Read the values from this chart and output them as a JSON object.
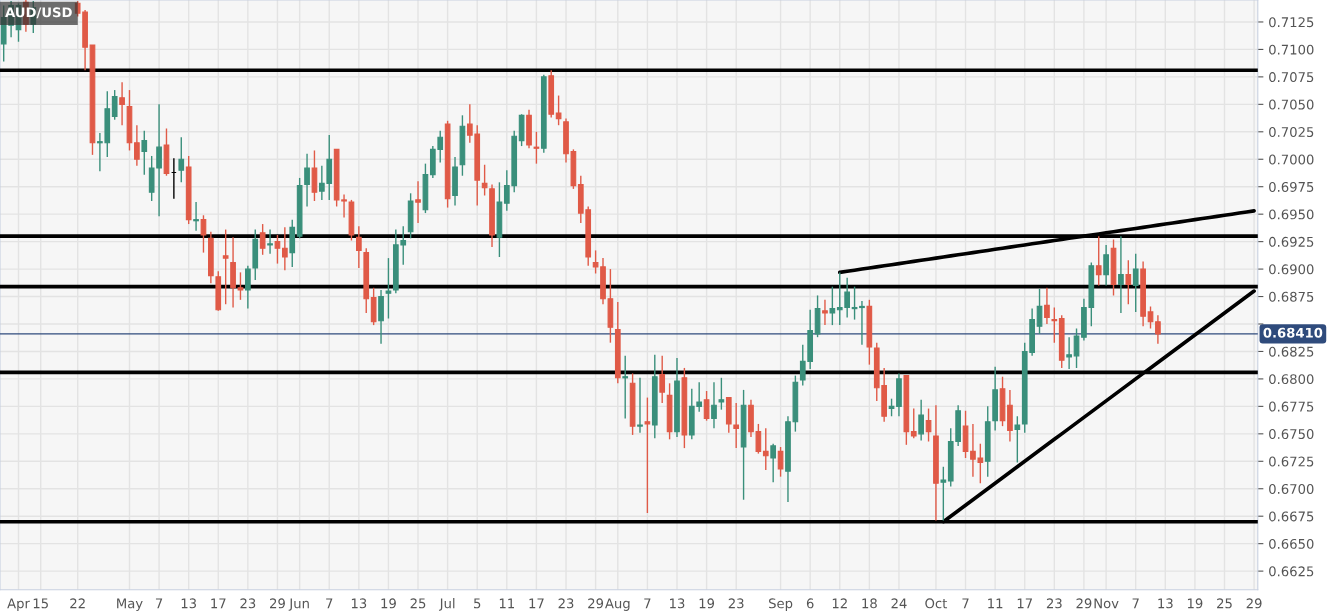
{
  "chart_data": {
    "type": "candlestick",
    "title": "AUD/USD",
    "categories": [
      null,
      null,
      "Apr",
      null,
      null,
      "15",
      null,
      null,
      null,
      null,
      "22",
      null,
      null,
      null,
      null,
      null,
      null,
      "May",
      null,
      null,
      null,
      "7",
      null,
      null,
      null,
      "13",
      null,
      null,
      null,
      "17",
      null,
      null,
      null,
      "23",
      null,
      null,
      null,
      "29",
      null,
      null,
      "Jun",
      null,
      null,
      null,
      "7",
      null,
      null,
      null,
      "13",
      null,
      null,
      null,
      "19",
      null,
      null,
      null,
      "25",
      null,
      null,
      null,
      "Jul",
      null,
      null,
      null,
      "5",
      null,
      null,
      null,
      "11",
      null,
      null,
      null,
      "17",
      null,
      null,
      null,
      "23",
      null,
      null,
      null,
      "29",
      null,
      null,
      "Aug",
      null,
      null,
      null,
      "7",
      null,
      null,
      null,
      "13",
      null,
      null,
      null,
      "19",
      null,
      null,
      null,
      "23",
      null,
      null,
      null,
      null,
      null,
      "Sep",
      null,
      null,
      null,
      "6",
      null,
      null,
      null,
      "12",
      null,
      null,
      null,
      "18",
      null,
      null,
      null,
      "24",
      null,
      null,
      null,
      null,
      "Oct",
      null,
      null,
      null,
      "7",
      null,
      null,
      null,
      "11",
      null,
      null,
      null,
      "17",
      null,
      null,
      null,
      "23",
      null,
      null,
      null,
      "29",
      null,
      null,
      "Nov",
      null,
      null,
      null,
      "7",
      null,
      null,
      null,
      "13",
      null,
      null,
      null,
      "19",
      null,
      null,
      null,
      "25",
      null,
      null,
      null,
      "29"
    ],
    "ohlc": [
      [
        0.7105,
        0.714,
        0.7089,
        0.7129
      ],
      [
        0.7122,
        0.7144,
        0.7111,
        0.714
      ],
      [
        0.7118,
        0.7142,
        0.7107,
        0.714
      ],
      [
        0.7143,
        0.7145,
        0.7116,
        0.7123
      ],
      [
        0.7123,
        0.7144,
        0.7115,
        0.7138
      ],
      null,
      null,
      null,
      null,
      null,
      [
        0.7142,
        0.7144,
        0.713,
        0.7133
      ],
      [
        0.7134,
        0.7136,
        0.7081,
        0.7102
      ],
      [
        0.7104,
        0.7104,
        0.7004,
        0.7015
      ],
      [
        0.7015,
        0.7024,
        0.6989,
        0.7016
      ],
      [
        0.7015,
        0.7062,
        0.7002,
        0.7046
      ],
      [
        0.7039,
        0.7063,
        0.7036,
        0.7057
      ],
      [
        0.7056,
        0.707,
        0.7031,
        0.705
      ],
      [
        0.7048,
        0.7063,
        0.7008,
        0.7015
      ],
      [
        0.7015,
        0.7031,
        0.6994,
        0.7
      ],
      [
        0.7007,
        0.7026,
        0.6986,
        0.7017
      ],
      [
        0.697,
        0.7003,
        0.6962,
        0.6992
      ],
      [
        0.6992,
        0.705,
        0.6948,
        0.7011
      ],
      [
        0.7013,
        0.7028,
        0.6985,
        0.6987
      ],
      [
        0.6988,
        0.7001,
        0.6964,
        0.6988
      ],
      [
        0.699,
        0.702,
        0.6979,
        0.7
      ],
      [
        0.6993,
        0.7003,
        0.6941,
        0.6945
      ],
      [
        0.6944,
        0.6961,
        0.6935,
        0.6945
      ],
      [
        0.6945,
        0.6949,
        0.6915,
        0.6931
      ],
      [
        0.6928,
        0.6934,
        0.6887,
        0.6894
      ],
      [
        0.6893,
        0.6898,
        0.6862,
        0.6863
      ],
      [
        0.6912,
        0.6936,
        0.6868,
        0.691
      ],
      [
        0.6906,
        0.6929,
        0.6865,
        0.6883
      ],
      [
        0.6883,
        0.6897,
        0.6872,
        0.6881
      ],
      [
        0.6881,
        0.6903,
        0.6864,
        0.69
      ],
      [
        0.6901,
        0.6936,
        0.689,
        0.6927
      ],
      [
        0.6933,
        0.6941,
        0.6913,
        0.6919
      ],
      [
        0.6922,
        0.6936,
        0.6914,
        0.6923
      ],
      [
        0.6925,
        0.6931,
        0.6905,
        0.6919
      ],
      [
        0.6919,
        0.6938,
        0.6899,
        0.6911
      ],
      [
        0.6915,
        0.6945,
        0.6902,
        0.6938
      ],
      [
        0.693,
        0.6983,
        0.6928,
        0.6976
      ],
      [
        0.6977,
        0.7005,
        0.6957,
        0.6992
      ],
      [
        0.6992,
        0.7008,
        0.6962,
        0.697
      ],
      [
        0.6971,
        0.6994,
        0.6963,
        0.6978
      ],
      [
        0.6978,
        0.7022,
        0.6963,
        0.7
      ],
      [
        0.7009,
        0.7009,
        0.6957,
        0.6963
      ],
      [
        0.6963,
        0.6968,
        0.6947,
        0.6962
      ],
      [
        0.6961,
        0.6963,
        0.6926,
        0.6931
      ],
      [
        0.6929,
        0.6939,
        0.6901,
        0.6917
      ],
      [
        0.6915,
        0.6919,
        0.686,
        0.6873
      ],
      [
        0.6874,
        0.6883,
        0.6849,
        0.6852
      ],
      [
        0.6853,
        0.6881,
        0.6832,
        0.6875
      ],
      [
        0.6878,
        0.691,
        0.6855,
        0.688
      ],
      [
        0.6881,
        0.6936,
        0.6878,
        0.6922
      ],
      [
        0.6922,
        0.6939,
        0.6904,
        0.6926
      ],
      [
        0.6934,
        0.6969,
        0.6928,
        0.6962
      ],
      [
        0.6963,
        0.698,
        0.6942,
        0.6961
      ],
      [
        0.6954,
        0.6996,
        0.6951,
        0.6986
      ],
      [
        0.6986,
        0.7012,
        0.6983,
        0.7009
      ],
      [
        0.7009,
        0.7026,
        0.6997,
        0.702
      ],
      [
        0.7032,
        0.7035,
        0.6956,
        0.6964
      ],
      [
        0.6967,
        0.7002,
        0.6958,
        0.6993
      ],
      [
        0.6995,
        0.704,
        0.6985,
        0.703
      ],
      [
        0.7032,
        0.705,
        0.7015,
        0.7022
      ],
      [
        0.7023,
        0.7031,
        0.6958,
        0.6981
      ],
      [
        0.6978,
        0.6995,
        0.6967,
        0.6974
      ],
      [
        0.6973,
        0.6977,
        0.692,
        0.6931
      ],
      [
        0.6929,
        0.6979,
        0.6911,
        0.6961
      ],
      [
        0.696,
        0.699,
        0.6953,
        0.6976
      ],
      [
        0.6976,
        0.7026,
        0.697,
        0.7021
      ],
      [
        0.7017,
        0.7041,
        0.7012,
        0.704
      ],
      [
        0.704,
        0.7045,
        0.701,
        0.7013
      ],
      [
        0.7011,
        0.7025,
        0.6996,
        0.701
      ],
      [
        0.701,
        0.7077,
        0.7006,
        0.7075
      ],
      [
        0.7076,
        0.7081,
        0.7038,
        0.7041
      ],
      [
        0.7042,
        0.7058,
        0.7031,
        0.7037
      ],
      [
        0.7034,
        0.7037,
        0.6997,
        0.7005
      ],
      [
        0.7007,
        0.7009,
        0.6973,
        0.6976
      ],
      [
        0.6977,
        0.6985,
        0.6942,
        0.6951
      ],
      [
        0.6954,
        0.6957,
        0.6903,
        0.6911
      ],
      [
        0.6906,
        0.6917,
        0.6896,
        0.6902
      ],
      [
        0.6902,
        0.691,
        0.6868,
        0.6873
      ],
      [
        0.6873,
        0.69,
        0.6833,
        0.6847
      ],
      [
        0.6845,
        0.687,
        0.6796,
        0.6801
      ],
      [
        0.6801,
        0.6821,
        0.6764,
        0.6802
      ],
      [
        0.6796,
        0.6805,
        0.6749,
        0.6757
      ],
      [
        0.6757,
        0.6801,
        0.6751,
        0.6758
      ],
      [
        0.6761,
        0.6783,
        0.6678,
        0.6759
      ],
      [
        0.6758,
        0.6822,
        0.6746,
        0.6802
      ],
      [
        0.6804,
        0.6821,
        0.6778,
        0.6788
      ],
      [
        0.6785,
        0.6796,
        0.6745,
        0.6752
      ],
      [
        0.6752,
        0.6819,
        0.6747,
        0.6798
      ],
      [
        0.6801,
        0.681,
        0.6737,
        0.6749
      ],
      [
        0.6749,
        0.6791,
        0.6745,
        0.6775
      ],
      [
        0.6775,
        0.6797,
        0.677,
        0.6779
      ],
      [
        0.6781,
        0.6789,
        0.6762,
        0.6764
      ],
      [
        0.6764,
        0.6797,
        0.6755,
        0.6776
      ],
      [
        0.6779,
        0.6801,
        0.6772,
        0.6781
      ],
      [
        0.6783,
        0.6783,
        0.6751,
        0.6759
      ],
      [
        0.6758,
        0.6778,
        0.6737,
        0.6755
      ],
      [
        0.6738,
        0.679,
        0.669,
        0.6776
      ],
      [
        0.6776,
        0.6781,
        0.6747,
        0.6752
      ],
      [
        0.6752,
        0.6759,
        0.6732,
        0.6734
      ],
      [
        0.6734,
        0.6755,
        0.6717,
        0.673
      ],
      [
        0.6728,
        0.6741,
        0.6706,
        0.6739
      ],
      [
        0.6734,
        0.6738,
        0.6711,
        0.6718
      ],
      [
        0.6716,
        0.6766,
        0.6688,
        0.6761
      ],
      [
        0.6761,
        0.6803,
        0.6752,
        0.6797
      ],
      [
        0.6799,
        0.6831,
        0.6794,
        0.6816
      ],
      [
        0.6816,
        0.6863,
        0.6809,
        0.6844
      ],
      [
        0.6841,
        0.6876,
        0.6838,
        0.6864
      ],
      [
        0.6862,
        0.6872,
        0.6849,
        0.686
      ],
      [
        0.686,
        0.6884,
        0.6849,
        0.6864
      ],
      [
        0.6863,
        0.6897,
        0.6849,
        0.6865
      ],
      [
        0.6865,
        0.6892,
        0.6856,
        0.6879
      ],
      [
        0.6864,
        0.6884,
        0.6854,
        0.6865
      ],
      [
        0.6865,
        0.6871,
        0.6831,
        0.6866
      ],
      [
        0.6866,
        0.6872,
        0.6813,
        0.6829
      ],
      [
        0.6828,
        0.6833,
        0.678,
        0.6792
      ],
      [
        0.6794,
        0.681,
        0.6761,
        0.6766
      ],
      [
        0.6773,
        0.6782,
        0.6766,
        0.6775
      ],
      [
        0.6775,
        0.6805,
        0.6766,
        0.68
      ],
      [
        0.6803,
        0.6803,
        0.674,
        0.6752
      ],
      [
        0.6752,
        0.6773,
        0.6746,
        0.6748
      ],
      [
        0.675,
        0.6781,
        0.6744,
        0.6767
      ],
      [
        0.6762,
        0.6773,
        0.6743,
        0.6752
      ],
      [
        0.6748,
        0.6776,
        0.6671,
        0.6705
      ],
      [
        0.6706,
        0.672,
        0.6671,
        0.6708
      ],
      [
        0.6707,
        0.6755,
        0.6702,
        0.6743
      ],
      [
        0.6743,
        0.6776,
        0.6739,
        0.6771
      ],
      [
        0.6757,
        0.6771,
        0.6728,
        0.6734
      ],
      [
        0.6734,
        0.6759,
        0.6711,
        0.6727
      ],
      [
        0.6728,
        0.6741,
        0.6705,
        0.6724
      ],
      [
        0.6725,
        0.6775,
        0.6711,
        0.6761
      ],
      [
        0.6762,
        0.6811,
        0.6753,
        0.679
      ],
      [
        0.6791,
        0.6802,
        0.6757,
        0.6762
      ],
      [
        0.6776,
        0.679,
        0.6743,
        0.6753
      ],
      [
        0.6754,
        0.6766,
        0.6724,
        0.6758
      ],
      [
        0.6759,
        0.6833,
        0.6751,
        0.6825
      ],
      [
        0.6824,
        0.6864,
        0.6821,
        0.6854
      ],
      [
        0.6848,
        0.6882,
        0.6841,
        0.6866
      ],
      [
        0.6867,
        0.6883,
        0.685,
        0.6856
      ],
      [
        0.6854,
        0.6865,
        0.6833,
        0.6853
      ],
      [
        0.6855,
        0.6858,
        0.681,
        0.6817
      ],
      [
        0.682,
        0.6838,
        0.6809,
        0.6822
      ],
      [
        0.6821,
        0.6846,
        0.681,
        0.6839
      ],
      [
        0.6838,
        0.6873,
        0.6835,
        0.6865
      ],
      [
        0.6865,
        0.6906,
        0.6848,
        0.6903
      ],
      [
        0.6903,
        0.693,
        0.6885,
        0.6895
      ],
      [
        0.6895,
        0.6922,
        0.6885,
        0.6913
      ],
      [
        0.6919,
        0.6927,
        0.6876,
        0.6886
      ],
      [
        0.6886,
        0.693,
        0.686,
        0.6895
      ],
      [
        0.6895,
        0.6908,
        0.6868,
        0.6886
      ],
      [
        0.6885,
        0.6914,
        0.6861,
        0.69
      ],
      [
        0.69,
        0.6907,
        0.6848,
        0.6857
      ],
      [
        0.6861,
        0.6866,
        0.6846,
        0.6852
      ],
      [
        0.6852,
        0.6858,
        0.6832,
        0.6841
      ],
      null,
      null,
      null,
      null,
      null,
      null,
      null,
      null,
      null,
      null,
      null,
      null,
      null
    ],
    "series": [
      {
        "type": "line",
        "color": "#000000",
        "values": [
          null,
          null,
          null,
          null,
          null,
          null,
          null,
          null,
          null,
          null,
          null,
          null,
          null,
          null,
          null,
          null,
          null,
          null,
          null,
          null,
          null,
          null,
          null,
          null,
          null,
          null,
          null,
          null,
          null,
          null,
          null,
          null,
          null,
          null,
          null,
          null,
          null,
          null,
          null,
          null,
          null,
          null,
          null,
          null,
          null,
          null,
          null,
          null,
          null,
          null,
          null,
          null,
          null,
          null,
          null,
          null,
          null,
          null,
          null,
          null,
          null,
          null,
          null,
          null,
          null,
          null,
          null,
          null,
          null,
          null,
          null,
          null,
          null,
          null,
          null,
          null,
          null,
          null,
          null,
          null,
          null,
          null,
          null,
          null,
          null,
          null,
          null,
          null,
          null,
          null,
          null,
          null,
          null,
          null,
          null,
          null,
          null,
          null,
          null,
          null,
          null,
          null,
          null,
          null,
          null,
          null,
          null,
          null,
          null,
          null,
          null,
          null,
          null,
          0.6897,
          0.6898,
          0.6899,
          0.69,
          0.6901,
          0.6902,
          0.6903,
          0.6904,
          0.6905,
          0.6906,
          0.6907,
          0.6908,
          0.6909,
          0.691,
          0.6911,
          0.6912,
          0.6913,
          0.6914,
          0.6915,
          0.6916,
          0.6917,
          0.6918,
          0.6919,
          0.692,
          0.6921,
          0.6922,
          0.6923,
          0.6924,
          0.6925,
          0.6926,
          0.6927,
          0.6928,
          0.6929,
          0.693,
          0.6931,
          0.6932,
          0.6933,
          0.6934,
          0.6935,
          0.6936,
          0.6937,
          0.6938,
          0.6939,
          0.694,
          0.6941,
          0.6942,
          0.6943,
          0.6944,
          0.6945,
          0.6946,
          0.6947,
          0.6948,
          0.6949,
          0.695,
          0.6951,
          0.6952,
          0.6953
        ]
      },
      {
        "type": "line",
        "color": "#000000",
        "values": [
          null,
          null,
          null,
          null,
          null,
          null,
          null,
          null,
          null,
          null,
          null,
          null,
          null,
          null,
          null,
          null,
          null,
          null,
          null,
          null,
          null,
          null,
          null,
          null,
          null,
          null,
          null,
          null,
          null,
          null,
          null,
          null,
          null,
          null,
          null,
          null,
          null,
          null,
          null,
          null,
          null,
          null,
          null,
          null,
          null,
          null,
          null,
          null,
          null,
          null,
          null,
          null,
          null,
          null,
          null,
          null,
          null,
          null,
          null,
          null,
          null,
          null,
          null,
          null,
          null,
          null,
          null,
          null,
          null,
          null,
          null,
          null,
          null,
          null,
          null,
          null,
          null,
          null,
          null,
          null,
          null,
          null,
          null,
          null,
          null,
          null,
          null,
          null,
          null,
          null,
          null,
          null,
          null,
          null,
          null,
          null,
          null,
          null,
          null,
          null,
          null,
          null,
          null,
          null,
          null,
          null,
          null,
          null,
          null,
          null,
          null,
          null,
          null,
          null,
          null,
          null,
          null,
          null,
          null,
          null,
          null,
          null,
          null,
          null,
          null,
          null,
          null,
          0.667,
          0.6675,
          0.668,
          0.6685,
          0.669,
          0.6695,
          0.67,
          0.6705,
          0.671,
          0.6715,
          0.672,
          0.6725,
          0.673,
          0.6735,
          0.674,
          0.6745,
          0.675,
          0.6755,
          0.676,
          0.6765,
          0.677,
          0.6775,
          0.678,
          0.6785,
          0.679,
          0.6795,
          0.68,
          0.6805,
          0.681,
          0.6815,
          0.682,
          0.6825,
          0.683,
          0.6835,
          0.684,
          0.6845,
          0.685,
          0.6855,
          0.686,
          0.6865,
          0.687,
          0.6875,
          0.688
        ]
      }
    ],
    "ref_lines": [
      {
        "axis": "y",
        "value": 0.7081,
        "color": "#000000"
      },
      {
        "axis": "y",
        "value": 0.693,
        "color": "#000000"
      },
      {
        "axis": "y",
        "value": 0.6884,
        "color": "#000000"
      },
      {
        "axis": "y",
        "value": 0.6806,
        "color": "#000000"
      },
      {
        "axis": "y",
        "value": 0.667,
        "color": "#000000"
      },
      {
        "axis": "y",
        "value": 0.6841,
        "color": "#2f4b7c",
        "label": "0.68410"
      }
    ],
    "ylim": [
      0.6608,
      0.7145
    ],
    "yticks": [
      0.6625,
      {
        "value": 0.665,
        "label": "0.6650"
      },
      0.6675,
      {
        "value": 0.67,
        "label": "0.6700"
      },
      0.6725,
      {
        "value": 0.675,
        "label": "0.6750"
      },
      0.6775,
      {
        "value": 0.68,
        "label": "0.6800"
      },
      0.6825,
      {
        "value": 0.685,
        "label": null
      },
      0.6875,
      {
        "value": 0.69,
        "label": "0.6900"
      },
      0.6925,
      {
        "value": 0.695,
        "label": "0.6950"
      },
      0.6975,
      {
        "value": 0.7,
        "label": "0.7000"
      },
      0.7025,
      {
        "value": 0.705,
        "label": "0.7050"
      },
      0.7075,
      {
        "value": 0.71,
        "label": "0.7100"
      },
      0.7125
    ],
    "grid": true
  }
}
